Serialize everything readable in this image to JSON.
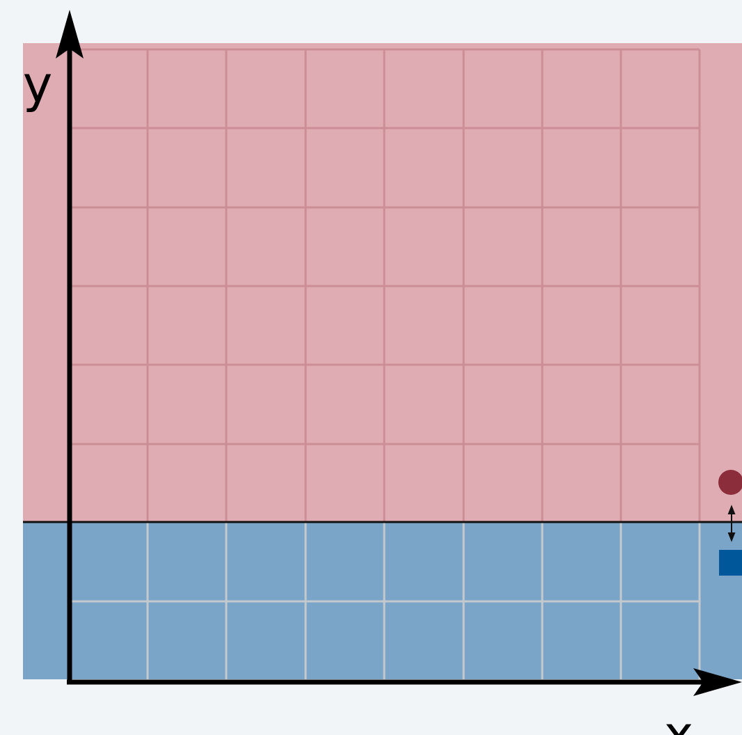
{
  "axes": {
    "y_label": "y",
    "x_label": "x"
  }
}
